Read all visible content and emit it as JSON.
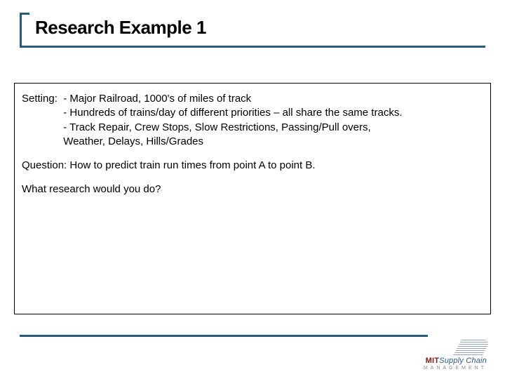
{
  "colors": {
    "accent": "#2a5a7a",
    "text": "#000000",
    "background": "#ffffff",
    "mit": "#7a1b1b",
    "logo_gray": "#888888"
  },
  "typography": {
    "title_fontsize": 26,
    "title_weight": 900,
    "body_fontsize": 15,
    "body_lineheight": 1.35,
    "logo_fontsize": 11,
    "logo_sub_fontsize": 7
  },
  "title": "Research Example 1",
  "setting": {
    "label": "Setting:  ",
    "bullets": [
      "- Major Railroad, 1000's of miles of track",
      "- Hundreds of trains/day of different priorities – all share the same tracks.",
      "- Track Repair, Crew Stops, Slow Restrictions, Passing/Pull overs,",
      "  Weather, Delays, Hills/Grades"
    ]
  },
  "question": "Question:   How to predict train run times from point A to point B.",
  "prompt": "What research would you do?",
  "logo": {
    "mit": "MIT",
    "supplychain": "Supply Chain",
    "sub": "MANAGEMENT"
  }
}
